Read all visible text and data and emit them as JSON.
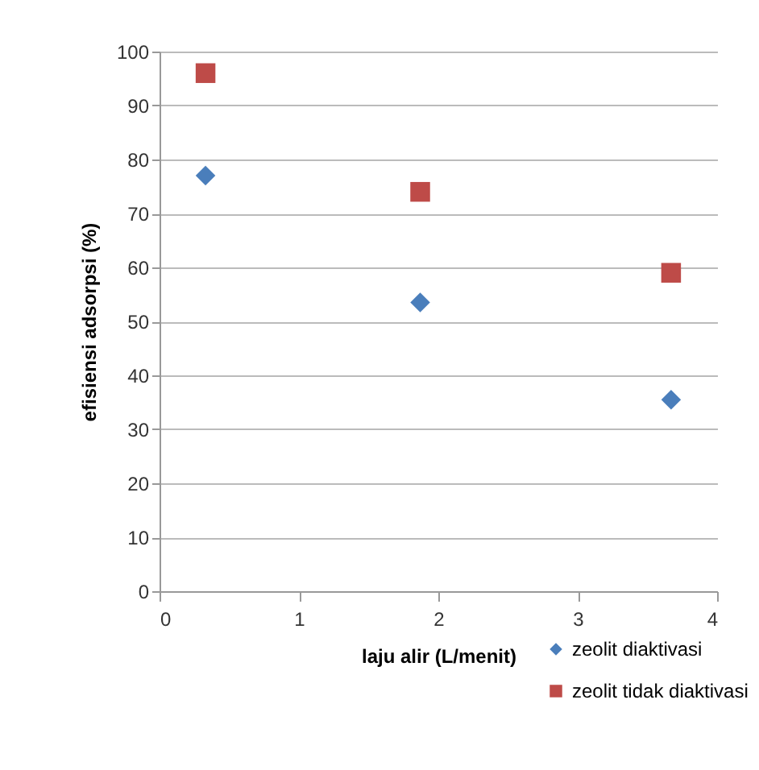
{
  "chart_data": {
    "type": "scatter",
    "xlabel": "laju alir (L/menit)",
    "ylabel": "efisiensi adsorpsi (%)",
    "x": [
      0.33,
      1.87,
      3.67
    ],
    "series": [
      {
        "name": "zeolit diaktivasi",
        "color": "#4a7ebb",
        "marker": "diamond",
        "values": [
          77,
          53.5,
          35.5
        ]
      },
      {
        "name": "zeolit tidak diaktivasi",
        "color": "#be4b48",
        "marker": "square",
        "values": [
          96,
          74,
          59
        ]
      }
    ],
    "xlim": [
      0,
      4
    ],
    "xticks": [
      0,
      1,
      2,
      3,
      4
    ],
    "ylim": [
      0,
      100
    ],
    "yticks": [
      0,
      10,
      20,
      30,
      40,
      50,
      60,
      70,
      80,
      90,
      100
    ],
    "grid": "y",
    "legend": "bottom right"
  }
}
